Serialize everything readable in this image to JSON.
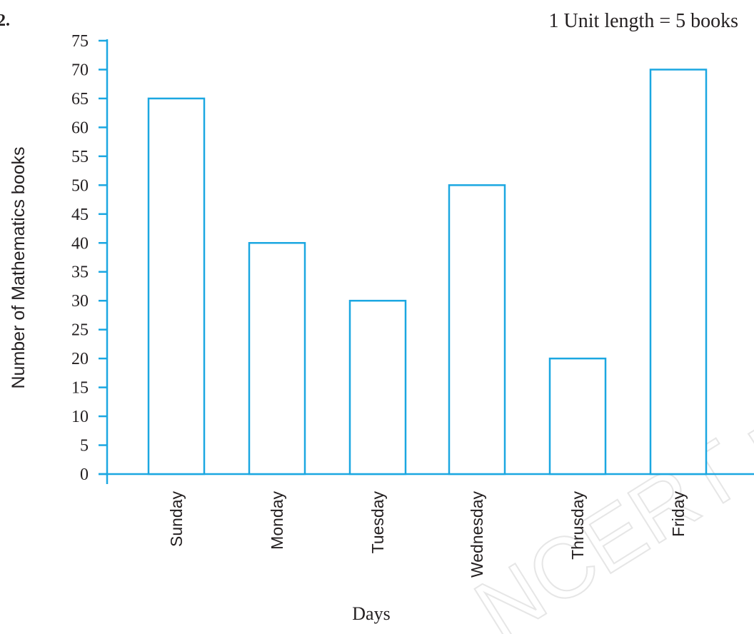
{
  "question_number": "2.",
  "scale_note": "1 Unit length = 5 books",
  "watermark_text": "NCERT publish",
  "chart_data": {
    "type": "bar",
    "categories": [
      "Sunday",
      "Monday",
      "Tuesday",
      "Wednesday",
      "Thrusday",
      "Friday"
    ],
    "values": [
      65,
      40,
      30,
      50,
      20,
      70
    ],
    "xlabel": "Days",
    "ylabel": "Number of Mathematics books",
    "ylim": [
      0,
      75
    ],
    "yticks": [
      0,
      5,
      10,
      15,
      20,
      25,
      30,
      35,
      40,
      45,
      50,
      55,
      60,
      65,
      70,
      75
    ],
    "grid": false,
    "bar_fill": "#ffffff",
    "bar_stroke": "#1ba7e1",
    "axis_color": "#1ba7e1"
  }
}
